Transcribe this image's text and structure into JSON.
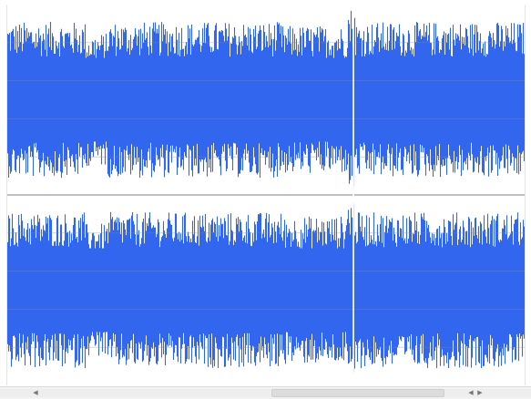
{
  "colors": {
    "waveform": "#3366ee",
    "centerline": "#2a55d8",
    "gridline": "#8a8a8a",
    "background": "#ffffff"
  },
  "waveform": {
    "channels": 2,
    "gridline_count_per_channel": 5
  },
  "scrollbar": {
    "left_arrow_icon": "chevron-left-icon",
    "right_arrow_icon": "chevron-right-icon",
    "thumb_fraction_start": 0.51,
    "thumb_fraction_width": 0.33
  }
}
